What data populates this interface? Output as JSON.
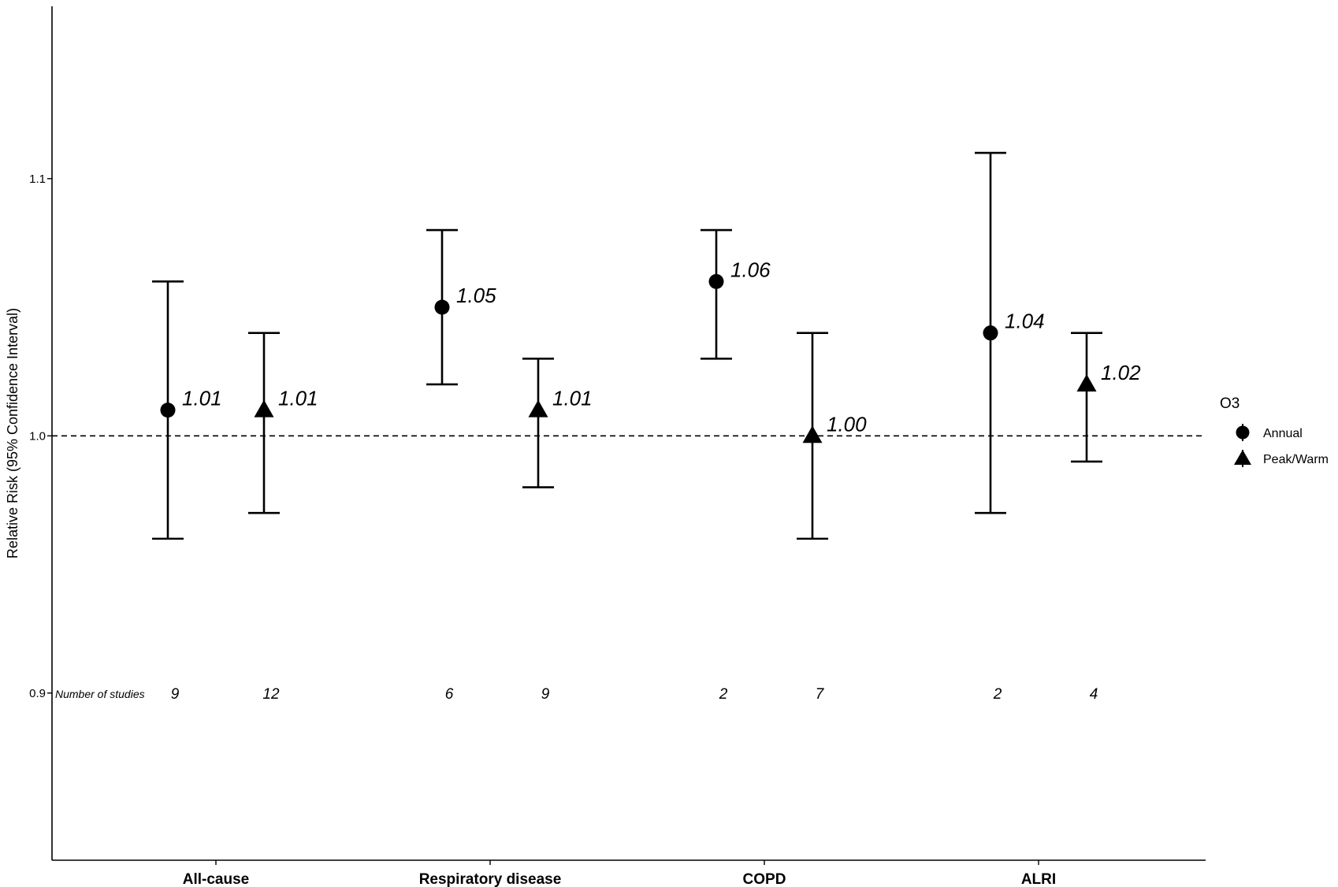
{
  "chart_data": {
    "type": "errorbar",
    "xlabel": "",
    "ylabel": "Relative Risk (95% Confidence Interval)",
    "ylim": [
      0.835,
      1.167
    ],
    "yticks": [
      "0.9",
      "1.0",
      "1.1"
    ],
    "reference_line": {
      "y": 1.0,
      "style": "dashed"
    },
    "grid": false,
    "categories": [
      "All-cause",
      "Respiratory disease",
      "COPD",
      "ALRI"
    ],
    "legend": {
      "title": "O3",
      "position": "right",
      "entries": [
        {
          "label": "Annual",
          "marker": "circle"
        },
        {
          "label": "Peak/Warm",
          "marker": "triangle"
        }
      ]
    },
    "series": [
      {
        "name": "Annual",
        "marker": "circle",
        "points": [
          {
            "category": "All-cause",
            "estimate": 1.01,
            "lower": 0.96,
            "upper": 1.06,
            "label": "1.01",
            "studies": "9"
          },
          {
            "category": "Respiratory disease",
            "estimate": 1.05,
            "lower": 1.02,
            "upper": 1.08,
            "label": "1.05",
            "studies": "6"
          },
          {
            "category": "COPD",
            "estimate": 1.06,
            "lower": 1.03,
            "upper": 1.08,
            "label": "1.06",
            "studies": "2"
          },
          {
            "category": "ALRI",
            "estimate": 1.04,
            "lower": 0.97,
            "upper": 1.11,
            "label": "1.04",
            "studies": "2"
          }
        ]
      },
      {
        "name": "Peak/Warm",
        "marker": "triangle",
        "points": [
          {
            "category": "All-cause",
            "estimate": 1.01,
            "lower": 0.97,
            "upper": 1.04,
            "label": "1.01",
            "studies": "12"
          },
          {
            "category": "Respiratory disease",
            "estimate": 1.01,
            "lower": 0.98,
            "upper": 1.03,
            "label": "1.01",
            "studies": "9"
          },
          {
            "category": "COPD",
            "estimate": 1.0,
            "lower": 0.96,
            "upper": 1.04,
            "label": "1.00",
            "studies": "7"
          },
          {
            "category": "ALRI",
            "estimate": 1.02,
            "lower": 0.99,
            "upper": 1.04,
            "label": "1.02",
            "studies": "4"
          }
        ]
      }
    ],
    "study_count_label": "Number of studies",
    "study_count_y": 0.9
  }
}
